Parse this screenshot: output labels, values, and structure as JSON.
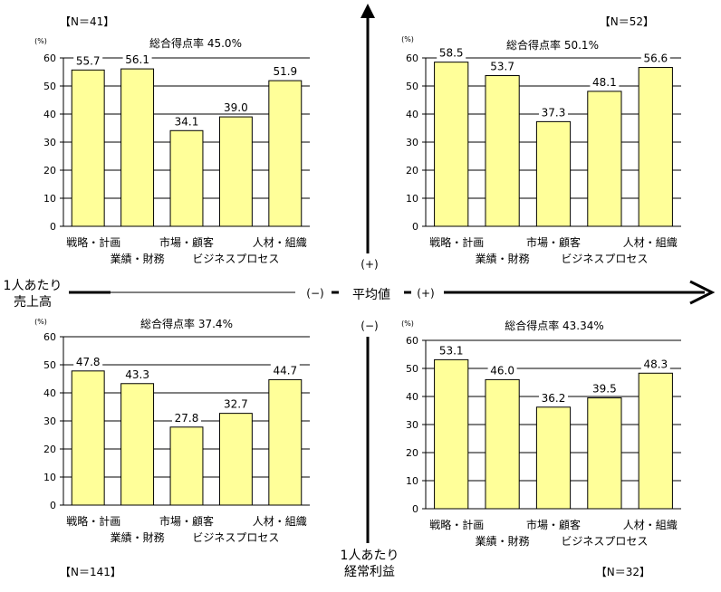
{
  "axes": {
    "x_axis_label_line1": "1人あたり",
    "x_axis_label_line2": "売上高",
    "y_axis_label_line1": "1人あたり",
    "y_axis_label_line2": "経常利益",
    "center_label": "平均値",
    "plus_top": "(+)",
    "plus_right": "(+)",
    "minus_left": "(−)",
    "minus_bottom": "(−)"
  },
  "chart_data": [
    {
      "type": "bar",
      "quadrant": "top-left",
      "n_label": "【N＝41】",
      "title": "総合得点率  45.0%",
      "ylabel": "(%)",
      "ylim": [
        0,
        60
      ],
      "yticks": [
        "0",
        "10",
        "20",
        "30",
        "40",
        "50",
        "60"
      ],
      "categories": [
        "戦略・計画",
        "業績・財務",
        "市場・顧客",
        "ビジネスプロセス",
        "人材・組織"
      ],
      "values": [
        55.7,
        56.1,
        34.1,
        39.0,
        51.9
      ],
      "value_labels": [
        "55.7",
        "56.1",
        "34.1",
        "39.0",
        "51.9"
      ],
      "bar_color": "#ffff99",
      "grid": true
    },
    {
      "type": "bar",
      "quadrant": "top-right",
      "n_label": "【N＝52】",
      "title": "総合得点率  50.1%",
      "ylabel": "(%)",
      "ylim": [
        0,
        60
      ],
      "yticks": [
        "0",
        "10",
        "20",
        "30",
        "40",
        "50",
        "60"
      ],
      "categories": [
        "戦略・計画",
        "業績・財務",
        "市場・顧客",
        "ビジネスプロセス",
        "人材・組織"
      ],
      "values": [
        58.5,
        53.7,
        37.3,
        48.1,
        56.6
      ],
      "value_labels": [
        "58.5",
        "53.7",
        "37.3",
        "48.1",
        "56.6"
      ],
      "bar_color": "#ffff99",
      "grid": true
    },
    {
      "type": "bar",
      "quadrant": "bottom-left",
      "n_label": "【N＝141】",
      "title": "総合得点率  37.4%",
      "ylabel": "(%)",
      "ylim": [
        0,
        60
      ],
      "yticks": [
        "0",
        "10",
        "20",
        "30",
        "40",
        "50",
        "60"
      ],
      "categories": [
        "戦略・計画",
        "業績・財務",
        "市場・顧客",
        "ビジネスプロセス",
        "人材・組織"
      ],
      "values": [
        47.8,
        43.3,
        27.8,
        32.7,
        44.7
      ],
      "value_labels": [
        "47.8",
        "43.3",
        "27.8",
        "32.7",
        "44.7"
      ],
      "bar_color": "#ffff99",
      "grid": true
    },
    {
      "type": "bar",
      "quadrant": "bottom-right",
      "n_label": "【N＝32】",
      "title": "総合得点率  43.34%",
      "ylabel": "(%)",
      "ylim": [
        0,
        60
      ],
      "yticks": [
        "0",
        "10",
        "20",
        "30",
        "40",
        "50",
        "60"
      ],
      "categories": [
        "戦略・計画",
        "業績・財務",
        "市場・顧客",
        "ビジネスプロセス",
        "人材・組織"
      ],
      "values": [
        53.1,
        46.0,
        36.2,
        39.5,
        48.3
      ],
      "value_labels": [
        "53.1",
        "46.0",
        "36.2",
        "39.5",
        "48.3"
      ],
      "bar_color": "#ffff99",
      "grid": true
    }
  ]
}
